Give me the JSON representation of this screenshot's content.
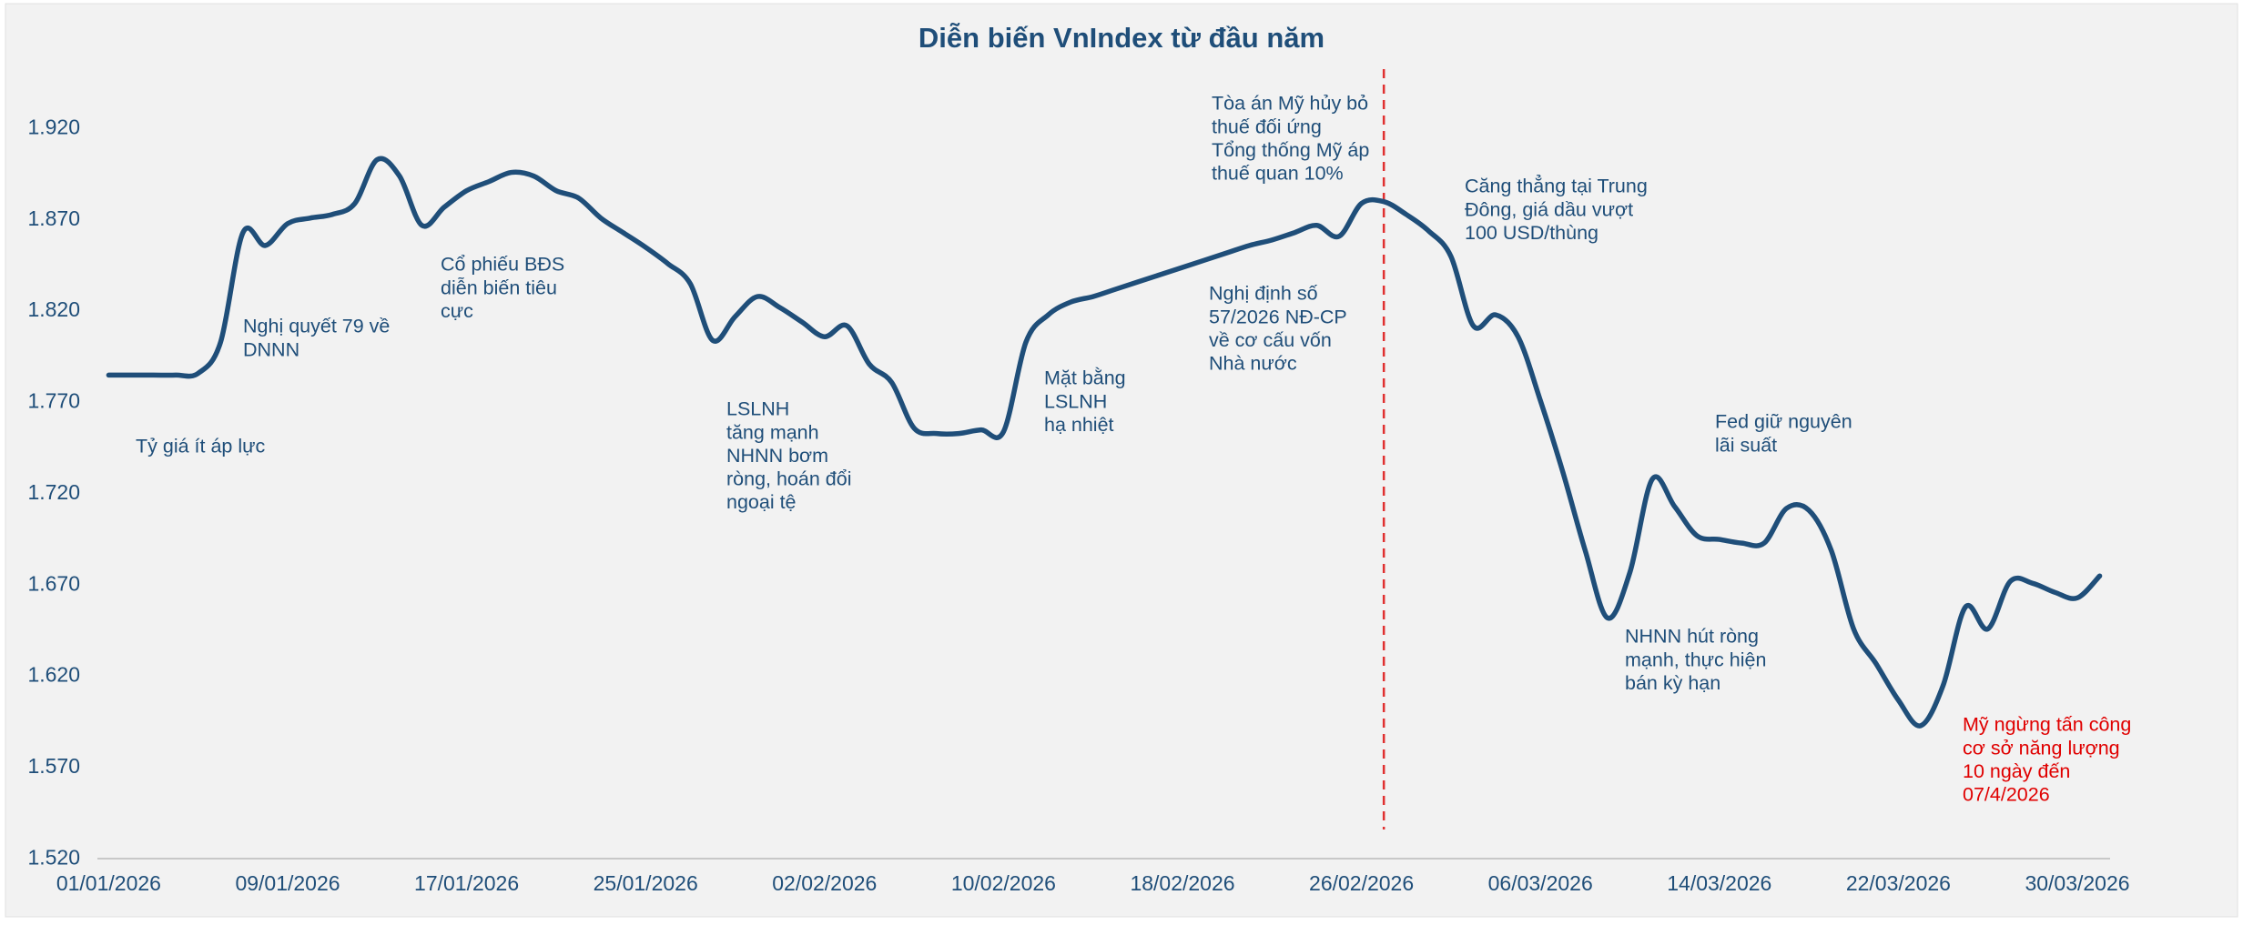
{
  "chart_data": {
    "type": "line",
    "title": "Diễn biến VnIndex từ đầu năm",
    "x": [
      "01/01/2026",
      "02/01/2026",
      "03/01/2026",
      "04/01/2026",
      "05/01/2026",
      "06/01/2026",
      "07/01/2026",
      "08/01/2026",
      "09/01/2026",
      "10/01/2026",
      "11/01/2026",
      "12/01/2026",
      "13/01/2026",
      "14/01/2026",
      "15/01/2026",
      "16/01/2026",
      "17/01/2026",
      "18/01/2026",
      "19/01/2026",
      "20/01/2026",
      "21/01/2026",
      "22/01/2026",
      "23/01/2026",
      "24/01/2026",
      "25/01/2026",
      "26/01/2026",
      "27/01/2026",
      "28/01/2026",
      "29/01/2026",
      "30/01/2026",
      "31/01/2026",
      "01/02/2026",
      "02/02/2026",
      "03/02/2026",
      "04/02/2026",
      "05/02/2026",
      "06/02/2026",
      "07/02/2026",
      "08/02/2026",
      "09/02/2026",
      "10/02/2026",
      "11/02/2026",
      "12/02/2026",
      "13/02/2026",
      "14/02/2026",
      "15/02/2026",
      "16/02/2026",
      "17/02/2026",
      "18/02/2026",
      "19/02/2026",
      "20/02/2026",
      "21/02/2026",
      "22/02/2026",
      "23/02/2026",
      "24/02/2026",
      "25/02/2026",
      "26/02/2026",
      "27/02/2026",
      "28/02/2026",
      "01/03/2026",
      "02/03/2026",
      "03/03/2026",
      "04/03/2026",
      "05/03/2026",
      "06/03/2026",
      "07/03/2026",
      "08/03/2026",
      "09/03/2026",
      "10/03/2026",
      "11/03/2026",
      "12/03/2026",
      "13/03/2026",
      "14/03/2026",
      "15/03/2026",
      "16/03/2026",
      "17/03/2026",
      "18/03/2026",
      "19/03/2026",
      "20/03/2026",
      "21/03/2026",
      "22/03/2026",
      "23/03/2026",
      "24/03/2026",
      "25/03/2026",
      "26/03/2026",
      "27/03/2026",
      "28/03/2026",
      "29/03/2026",
      "30/03/2026",
      "31/03/2026"
    ],
    "series": [
      {
        "name": "VnIndex",
        "color": "#1f4e79",
        "values": [
          1785,
          1785,
          1785,
          1785,
          1786,
          1803,
          1863,
          1856,
          1868,
          1871,
          1873,
          1879,
          1903,
          1894,
          1867,
          1877,
          1886,
          1891,
          1896,
          1894,
          1886,
          1882,
          1871,
          1863,
          1855,
          1846,
          1835,
          1804,
          1817,
          1828,
          1822,
          1814,
          1806,
          1812,
          1791,
          1781,
          1756,
          1753,
          1753,
          1755,
          1754,
          1803,
          1818,
          1825,
          1828,
          1832,
          1836,
          1840,
          1844,
          1848,
          1852,
          1856,
          1859,
          1863,
          1867,
          1861,
          1879,
          1880,
          1873,
          1864,
          1850,
          1812,
          1818,
          1806,
          1771,
          1732,
          1689,
          1652,
          1677,
          1728,
          1713,
          1697,
          1695,
          1693,
          1693,
          1712,
          1711,
          1689,
          1646,
          1627,
          1607,
          1593,
          1615,
          1658,
          1646,
          1672,
          1671,
          1666,
          1663,
          1675
        ]
      }
    ],
    "xticks": [
      "01/01/2026",
      "09/01/2026",
      "17/01/2026",
      "25/01/2026",
      "02/02/2026",
      "10/02/2026",
      "18/02/2026",
      "26/02/2026",
      "06/03/2026",
      "14/03/2026",
      "22/03/2026",
      "30/03/2026"
    ],
    "ylim": [
      1520,
      1920
    ],
    "yticks": [
      {
        "value": 1520,
        "label": "1.520"
      },
      {
        "value": 1570,
        "label": "1.570"
      },
      {
        "value": 1620,
        "label": "1.620"
      },
      {
        "value": 1670,
        "label": "1.670"
      },
      {
        "value": 1720,
        "label": "1.720"
      },
      {
        "value": 1770,
        "label": "1.770"
      },
      {
        "value": 1820,
        "label": "1.820"
      },
      {
        "value": 1870,
        "label": "1.870"
      },
      {
        "value": 1920,
        "label": "1.920"
      }
    ],
    "event_line": {
      "x": "27/02/2026",
      "color": "#e03030"
    },
    "annotations": [
      {
        "lines": [
          "Tỷ giá ít áp lực"
        ],
        "color": "#1f4e79"
      },
      {
        "lines": [
          "Nghị quyết 79 về",
          "DNNN"
        ],
        "color": "#1f4e79"
      },
      {
        "lines": [
          "Cổ phiếu BĐS",
          "diễn biến tiêu",
          "cực"
        ],
        "color": "#1f4e79"
      },
      {
        "lines": [
          "LSLNH",
          "tăng mạnh",
          "NHNN bơm",
          "ròng, hoán đổi",
          "ngoại tệ"
        ],
        "color": "#1f4e79"
      },
      {
        "lines": [
          "Mặt bằng",
          "LSLNH",
          "hạ nhiệt"
        ],
        "color": "#1f4e79"
      },
      {
        "lines": [
          "Nghị định số",
          "57/2026 NĐ-CP",
          "về cơ cấu vốn",
          "Nhà nước"
        ],
        "color": "#1f4e79"
      },
      {
        "lines": [
          "Tòa án Mỹ hủy bỏ",
          "thuế đối ứng",
          "Tổng thống Mỹ áp",
          "thuế quan 10%"
        ],
        "color": "#1f4e79"
      },
      {
        "lines": [
          "Căng thẳng tại Trung",
          "Đông, giá dầu vượt",
          "100 USD/thùng"
        ],
        "color": "#1f4e79"
      },
      {
        "lines": [
          "Fed giữ nguyên",
          "lãi suất"
        ],
        "color": "#1f4e79"
      },
      {
        "lines": [
          "NHNN hút ròng",
          "mạnh, thực hiện",
          "bán kỳ hạn"
        ],
        "color": "#1f4e79"
      },
      {
        "lines": [
          "Mỹ ngừng tấn công",
          "cơ sở năng lượng",
          "10 ngày đến",
          "07/4/2026"
        ],
        "color": "#e00000"
      }
    ]
  }
}
